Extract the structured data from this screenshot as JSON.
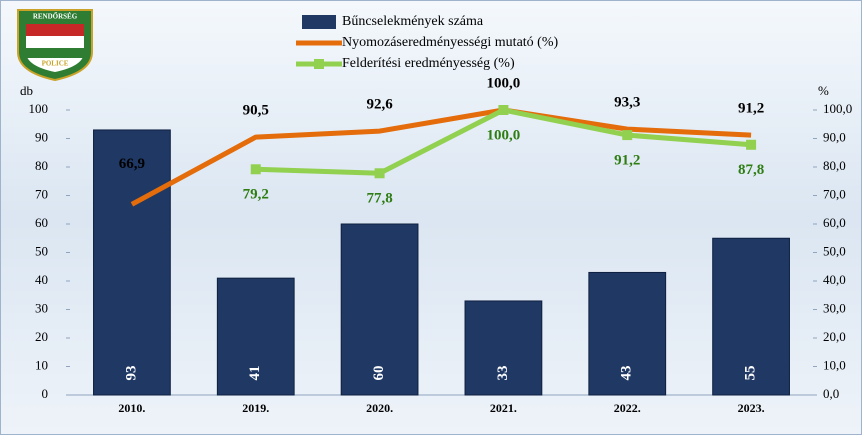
{
  "logo": {
    "top": "RENDŐRSÉG",
    "bottom": "POLICE"
  },
  "chart_data": {
    "type": "bar",
    "y_label": "db",
    "y2_label": "%",
    "categories": [
      "2010.",
      "2019.",
      "2020.",
      "2021.",
      "2022.",
      "2023."
    ],
    "series": [
      {
        "name": "Bűncselekmények száma",
        "type": "bar",
        "color": "#1f3864",
        "values": [
          93,
          41,
          60,
          33,
          43,
          55
        ]
      },
      {
        "name": "Nyomozáseredményességi mutató (%)",
        "type": "line",
        "axis": "y2",
        "color": "#e46c0a",
        "values": [
          66.9,
          90.5,
          92.6,
          100.0,
          93.3,
          91.2
        ],
        "value_labels": [
          "66,9",
          "90,5",
          "92,6",
          "100,0",
          "93,3",
          "91,2"
        ]
      },
      {
        "name": "Felderítési eredményesség (%)",
        "type": "line",
        "axis": "y2",
        "color": "#92d050",
        "marker": "square",
        "values": [
          null,
          79.2,
          77.8,
          100.0,
          91.2,
          87.8
        ],
        "value_labels": [
          null,
          "79,2",
          "77,8",
          "100,0",
          "91,2",
          "87,8"
        ]
      }
    ],
    "ylim": [
      0,
      100
    ],
    "yticks": [
      0,
      10,
      20,
      30,
      40,
      50,
      60,
      70,
      80,
      90,
      100
    ],
    "y2lim": [
      0,
      100
    ],
    "y2ticks": [
      {
        "value": 0,
        "label": "0,0"
      },
      {
        "value": 10,
        "label": "10,0"
      },
      {
        "value": 20,
        "label": "20,0"
      },
      {
        "value": 30,
        "label": "30,0"
      },
      {
        "value": 40,
        "label": "40,0"
      },
      {
        "value": 50,
        "label": "50,0"
      },
      {
        "value": 60,
        "label": "60,0"
      },
      {
        "value": 70,
        "label": "70,0"
      },
      {
        "value": 80,
        "label": "80,0"
      },
      {
        "value": 90,
        "label": "90,0"
      },
      {
        "value": 100,
        "label": "100,0"
      }
    ],
    "legend": "top"
  }
}
